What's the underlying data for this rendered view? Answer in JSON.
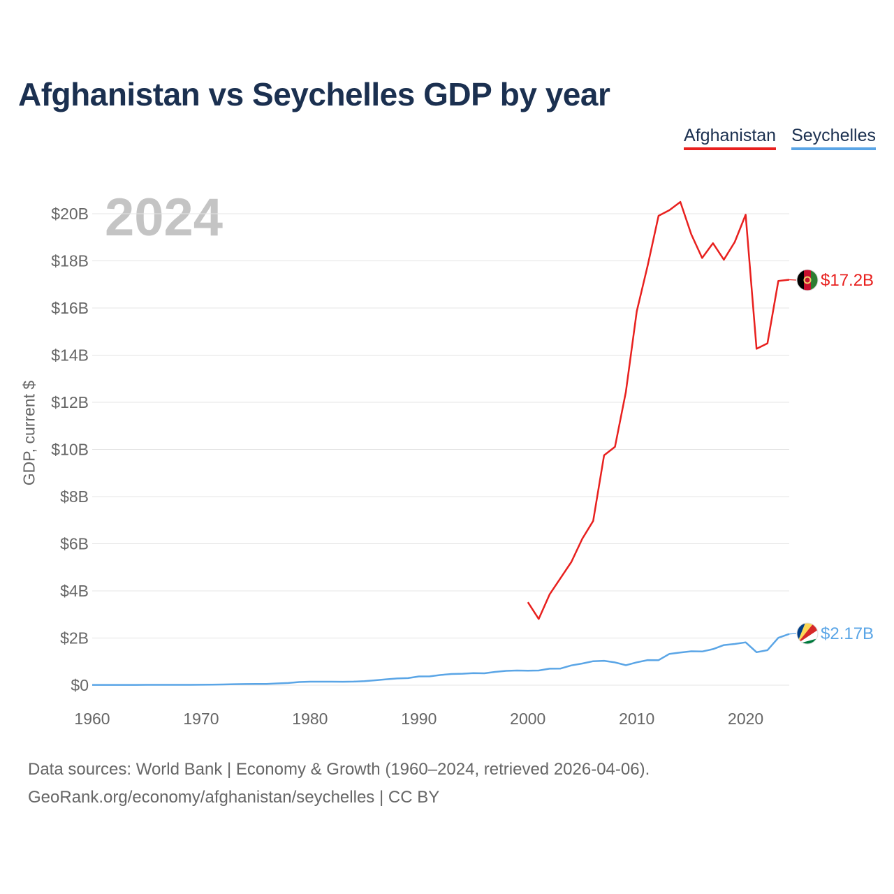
{
  "title": "Afghanistan vs Seychelles GDP by year",
  "current_year": "2024",
  "legend": [
    {
      "label": "Afghanistan",
      "color": "#e8201e"
    },
    {
      "label": "Seychelles",
      "color": "#5aa5e6"
    }
  ],
  "source": {
    "line1": "Data sources: World Bank | Economy & Growth (1960–2024, retrieved 2026-04-06).",
    "line2": "GeoRank.org/economy/afghanistan/seychelles | CC BY"
  },
  "chart_data": {
    "type": "line",
    "title": "Afghanistan vs Seychelles GDP by year",
    "xlabel": "",
    "ylabel": "GDP, current $",
    "xlim": [
      1960,
      2024
    ],
    "ylim": [
      0,
      20
    ],
    "unit": "billion USD",
    "x_ticks": [
      1960,
      1970,
      1980,
      1990,
      2000,
      2010,
      2020
    ],
    "x_tick_labels": [
      "1960",
      "1970",
      "1980",
      "1990",
      "2000",
      "2010",
      "2020"
    ],
    "y_ticks": [
      0,
      2,
      4,
      6,
      8,
      10,
      12,
      14,
      16,
      18,
      20
    ],
    "y_tick_labels": [
      "$0",
      "$2B",
      "$4B",
      "$6B",
      "$8B",
      "$10B",
      "$12B",
      "$14B",
      "$16B",
      "$18B",
      "$20B"
    ],
    "grid": true,
    "legend_position": "top-right",
    "series": [
      {
        "name": "Afghanistan",
        "color": "#e8201e",
        "end_label": "$17.2B",
        "x": [
          2000,
          2001,
          2002,
          2003,
          2004,
          2005,
          2006,
          2007,
          2008,
          2009,
          2010,
          2011,
          2012,
          2013,
          2014,
          2015,
          2016,
          2017,
          2018,
          2019,
          2020,
          2021,
          2022,
          2023,
          2024
        ],
        "values": [
          3.52,
          2.81,
          3.85,
          4.54,
          5.23,
          6.21,
          6.97,
          9.75,
          10.11,
          12.44,
          15.86,
          17.8,
          19.91,
          20.15,
          20.5,
          19.13,
          18.12,
          18.75,
          18.05,
          18.8,
          19.96,
          14.27,
          14.5,
          17.15,
          17.2
        ]
      },
      {
        "name": "Seychelles",
        "color": "#5aa5e6",
        "end_label": "$2.17B",
        "x": [
          1960,
          1961,
          1962,
          1963,
          1964,
          1965,
          1966,
          1967,
          1968,
          1969,
          1970,
          1971,
          1972,
          1973,
          1974,
          1975,
          1976,
          1977,
          1978,
          1979,
          1980,
          1981,
          1982,
          1983,
          1984,
          1985,
          1986,
          1987,
          1988,
          1989,
          1990,
          1991,
          1992,
          1993,
          1994,
          1995,
          1996,
          1997,
          1998,
          1999,
          2000,
          2001,
          2002,
          2003,
          2004,
          2005,
          2006,
          2007,
          2008,
          2009,
          2010,
          2011,
          2012,
          2013,
          2014,
          2015,
          2016,
          2017,
          2018,
          2019,
          2020,
          2021,
          2022,
          2023,
          2024
        ],
        "values": [
          0.012,
          0.012,
          0.013,
          0.013,
          0.013,
          0.014,
          0.014,
          0.015,
          0.015,
          0.016,
          0.018,
          0.022,
          0.031,
          0.04,
          0.047,
          0.052,
          0.054,
          0.073,
          0.092,
          0.134,
          0.147,
          0.147,
          0.147,
          0.145,
          0.15,
          0.169,
          0.207,
          0.25,
          0.285,
          0.3,
          0.369,
          0.374,
          0.433,
          0.473,
          0.487,
          0.509,
          0.503,
          0.564,
          0.608,
          0.622,
          0.615,
          0.622,
          0.698,
          0.706,
          0.839,
          0.919,
          1.016,
          1.033,
          0.967,
          0.847,
          0.97,
          1.065,
          1.06,
          1.328,
          1.386,
          1.438,
          1.427,
          1.528,
          1.701,
          1.749,
          1.815,
          1.398,
          1.484,
          2.008,
          2.171
        ]
      }
    ]
  }
}
